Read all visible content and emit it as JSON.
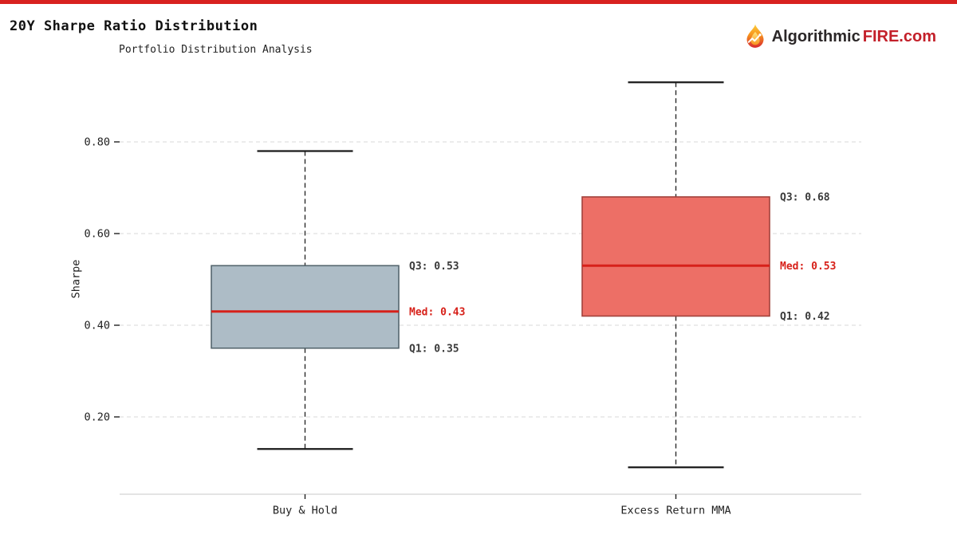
{
  "header": {
    "title": "20Y Sharpe Ratio Distribution",
    "subtitle": "Portfolio Distribution Analysis"
  },
  "accent": {
    "top_bar_color": "#d8211f"
  },
  "brand": {
    "icon": "flame-chart-icon",
    "name_dark": "Algorithmic",
    "name_red": "FIRE.com",
    "dark_color": "#2b2728",
    "red_color": "#c3202a"
  },
  "chart_data": {
    "type": "box",
    "title": "20Y Sharpe Ratio Distribution",
    "subtitle": "Portfolio Distribution Analysis",
    "ylabel": "Sharpe",
    "xlabel": "",
    "ylim": [
      0.03,
      0.98
    ],
    "yticks": [
      0.2,
      0.4,
      0.6,
      0.8
    ],
    "grid": "horizontal-dashed",
    "legend": "none",
    "categories": [
      "Buy & Hold",
      "Excess Return MMA"
    ],
    "series": [
      {
        "label": "Buy & Hold",
        "whisker_low": 0.13,
        "q1": 0.35,
        "median": 0.43,
        "q3": 0.53,
        "whisker_high": 0.78,
        "q3_label": "Q3: 0.53",
        "median_label": "Med: 0.43",
        "q1_label": "Q1: 0.35",
        "box_fill": "#adbcc6",
        "box_border": "#55666e"
      },
      {
        "label": "Excess Return MMA",
        "whisker_low": 0.09,
        "q1": 0.42,
        "median": 0.53,
        "q3": 0.68,
        "q3_label": "Q3: 0.68",
        "median_label": "Med: 0.53",
        "q1_label": "Q1: 0.42",
        "whisker_high": 0.93,
        "box_fill": "#ed6f66",
        "box_border": "#a2423b"
      }
    ],
    "median_line_color": "#d7211a",
    "median_label_color": "#d7211a",
    "annotation_color": "#3a3a3a",
    "whisker_color": "#2a2a2a",
    "cap_color": "#1a1a1a",
    "grid_color": "#dadada",
    "axis_line_color": "#c9c9c9",
    "tick_color": "#222222",
    "text_color": "#1f1f1f"
  }
}
